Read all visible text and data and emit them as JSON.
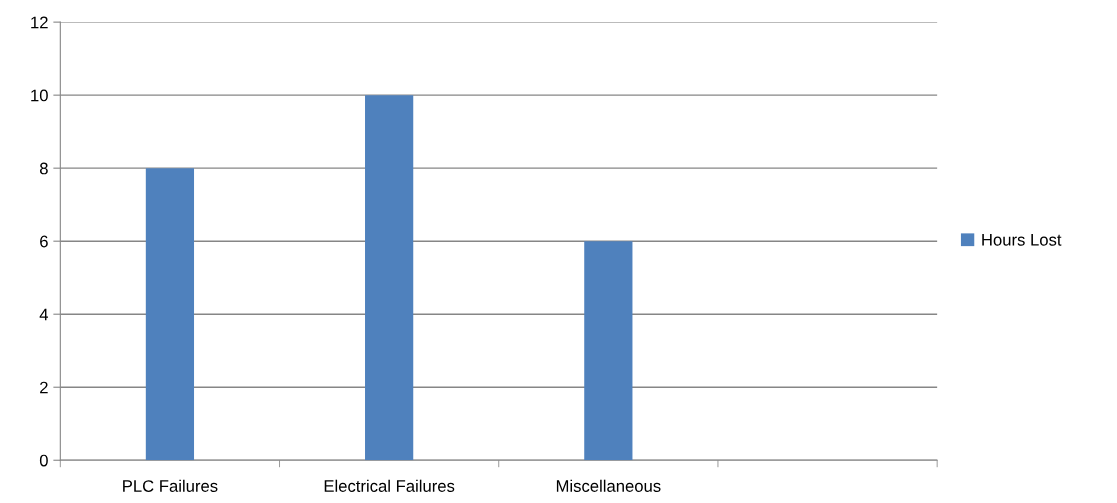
{
  "chart_data": {
    "type": "bar",
    "categories": [
      "PLC Failures",
      "Electrical Failures",
      "Miscellaneous",
      null
    ],
    "series": [
      {
        "name": "Hours Lost",
        "color": "#4f81bd",
        "values": [
          8,
          10,
          6,
          null
        ]
      }
    ],
    "ylim": [
      0,
      12
    ],
    "yticks": [
      0,
      2,
      4,
      6,
      8,
      10,
      12
    ],
    "grid": "y",
    "legend": "right"
  }
}
